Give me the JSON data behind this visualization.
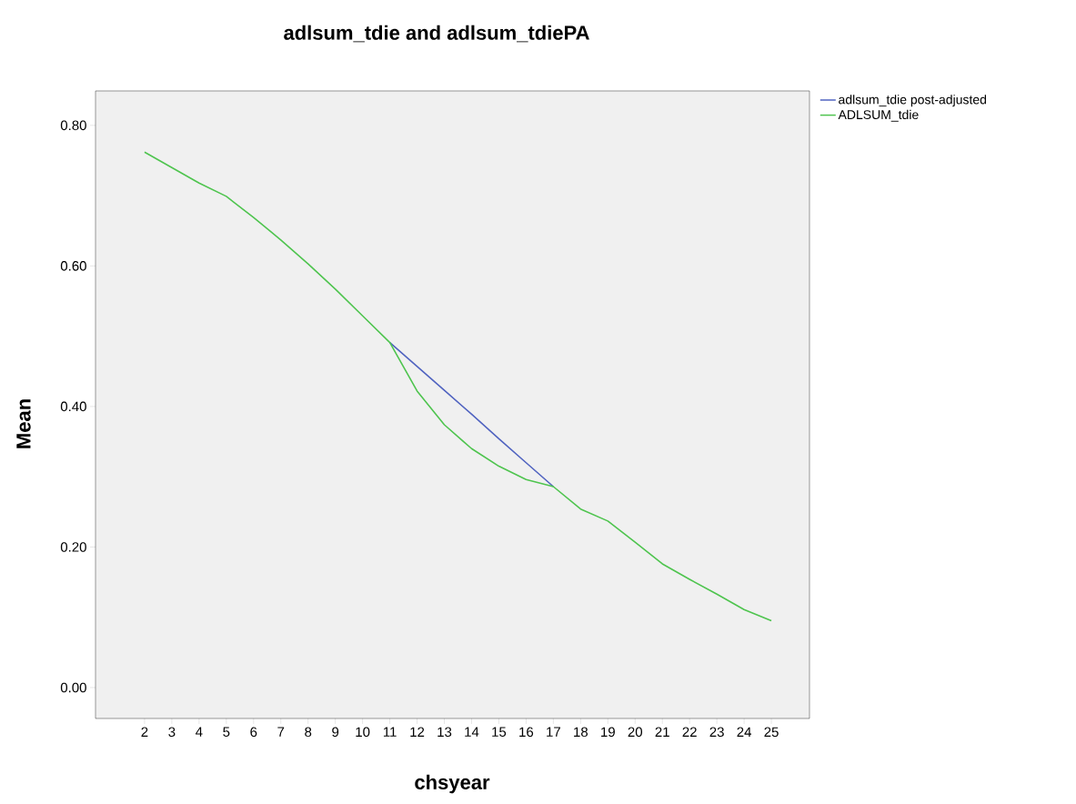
{
  "chart_data": {
    "type": "line",
    "title": "adlsum_tdie and adlsum_tdiePA",
    "xlabel": "chsyear",
    "ylabel": "Mean",
    "categories": [
      "2",
      "3",
      "4",
      "5",
      "6",
      "7",
      "8",
      "9",
      "10",
      "11",
      "12",
      "13",
      "14",
      "15",
      "16",
      "17",
      "18",
      "19",
      "20",
      "21",
      "22",
      "23",
      "24",
      "25"
    ],
    "series": [
      {
        "name": "adlsum_tdie post-adjusted",
        "color": "#5063c0",
        "values": [
          null,
          null,
          null,
          null,
          null,
          null,
          null,
          null,
          null,
          0.491,
          0.457,
          0.423,
          0.389,
          0.354,
          0.32,
          0.286,
          null,
          null,
          null,
          null,
          null,
          null,
          null,
          null
        ]
      },
      {
        "name": "ADLSUM_tdie",
        "color": "#4ec44e",
        "values": [
          0.762,
          0.74,
          0.718,
          0.699,
          0.669,
          0.637,
          0.603,
          0.567,
          0.529,
          0.491,
          0.422,
          0.374,
          0.34,
          0.315,
          0.296,
          0.286,
          0.254,
          0.237,
          0.207,
          0.176,
          0.154,
          0.133,
          0.111,
          0.095
        ]
      }
    ],
    "ylim": [
      -0.044,
      0.849
    ],
    "yticks": [
      {
        "value": 0,
        "label": "0.00"
      },
      {
        "value": 0.2,
        "label": "0.20"
      },
      {
        "value": 0.4,
        "label": "0.40"
      },
      {
        "value": 0.6,
        "label": "0.60"
      },
      {
        "value": 0.8,
        "label": "0.80"
      }
    ],
    "grid": false,
    "legend": "top right",
    "marker": "none",
    "line_style": "solid"
  }
}
